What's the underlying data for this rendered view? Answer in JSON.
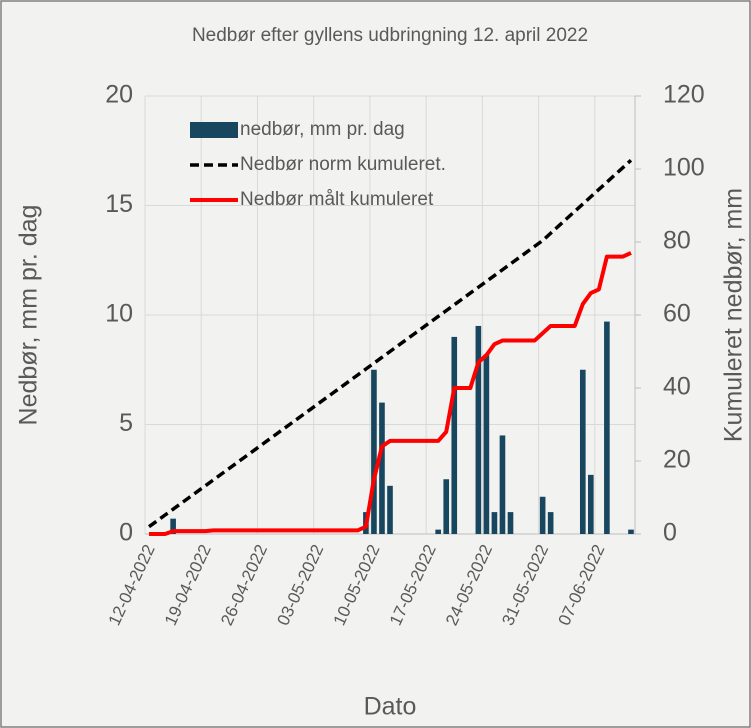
{
  "chart_data": {
    "type": "combo",
    "title": "Nedbør efter gyllens udbringning 12. april 2022",
    "y_label": "Nedbør, mm pr. dag",
    "y2_label": "Kumuleret nedbør, mm",
    "x_label": "Dato",
    "categories": [
      "12-04-2022",
      null,
      null,
      null,
      null,
      null,
      null,
      "19-04-2022",
      null,
      null,
      null,
      null,
      null,
      null,
      "26-04-2022",
      null,
      null,
      null,
      null,
      null,
      null,
      "03-05-2022",
      null,
      null,
      null,
      null,
      null,
      null,
      "10-05-2022",
      null,
      null,
      null,
      null,
      null,
      null,
      "17-05-2022",
      null,
      null,
      null,
      null,
      null,
      null,
      "24-05-2022",
      null,
      null,
      null,
      null,
      null,
      null,
      "31-05-2022",
      null,
      null,
      null,
      null,
      null,
      null,
      "07-06-2022",
      null,
      null,
      null,
      null
    ],
    "series": [
      {
        "name": "nedbør, mm pr. dag",
        "type": "bar",
        "axis": "y",
        "color": "#17465e",
        "values": [
          0,
          0,
          0,
          0.7,
          0,
          0,
          0,
          0,
          0,
          0,
          0,
          0,
          0,
          0,
          0,
          0,
          0,
          0,
          0,
          0,
          0,
          0,
          0,
          0,
          0,
          0,
          0,
          1.0,
          7.5,
          6.0,
          2.2,
          0,
          0,
          0,
          0,
          0,
          0.2,
          2.5,
          9.0,
          0,
          0,
          9.5,
          8.2,
          1.0,
          4.5,
          1.0,
          0,
          0,
          0,
          1.7,
          1.0,
          0,
          0,
          0,
          7.5,
          2.7,
          0,
          9.7,
          0,
          0,
          0.2
        ]
      },
      {
        "name": "Nedbør norm kumuleret.",
        "type": "line",
        "dash": true,
        "axis": "y2",
        "color": "#000000",
        "values": [
          2.0,
          3.6,
          5.2,
          6.8,
          8.4,
          10.0,
          11.6,
          13.2,
          14.8,
          16.4,
          18.0,
          19.6,
          21.2,
          22.8,
          24.4,
          26.0,
          27.6,
          29.2,
          30.8,
          32.4,
          34.0,
          35.6,
          37.2,
          38.8,
          40.4,
          42.0,
          43.6,
          45.2,
          46.8,
          48.4,
          50.0,
          51.6,
          53.2,
          54.8,
          56.4,
          58.0,
          59.6,
          61.2,
          62.8,
          64.4,
          66.0,
          67.6,
          69.2,
          70.8,
          72.4,
          74.0,
          75.6,
          77.2,
          78.8,
          80.4,
          82.4,
          84.4,
          86.4,
          88.4,
          90.4,
          92.4,
          94.4,
          96.4,
          98.4,
          100.4,
          102.4
        ]
      },
      {
        "name": "Nedbør målt kumuleret",
        "type": "line",
        "dash": false,
        "axis": "y2",
        "color": "#ff0000",
        "values": [
          0,
          0,
          0,
          0.8,
          0.8,
          0.8,
          0.8,
          0.8,
          1,
          1,
          1,
          1,
          1,
          1,
          1,
          1,
          1,
          1,
          1,
          1,
          1,
          1,
          1,
          1,
          1,
          1,
          1,
          2,
          15,
          24,
          25.5,
          25.5,
          25.5,
          25.5,
          25.5,
          25.5,
          25.5,
          28,
          40,
          40,
          40,
          47,
          49,
          52,
          53,
          53,
          53,
          53,
          53,
          55,
          57,
          57,
          57,
          57,
          63,
          66,
          67,
          76,
          76,
          76,
          77
        ]
      }
    ],
    "ylim": [
      0,
      20
    ],
    "yticks": [
      0,
      5,
      10,
      15,
      20
    ],
    "y2lim": [
      0,
      120
    ],
    "y2ticks": [
      0,
      20,
      40,
      60,
      80,
      100,
      120
    ],
    "grid": true,
    "legend": "upper left"
  }
}
